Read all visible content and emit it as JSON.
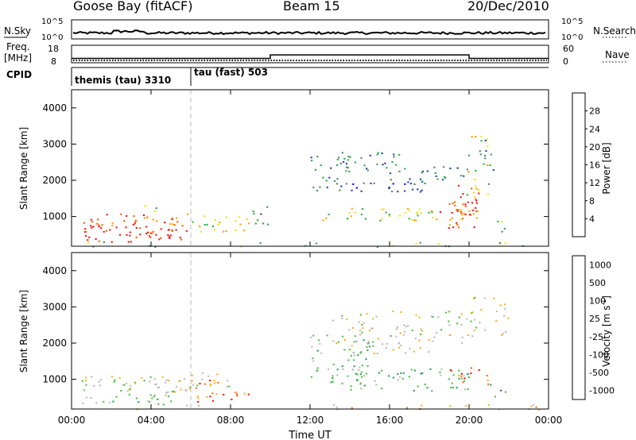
{
  "header": {
    "station": "Goose Bay (fitACF)",
    "beam": "Beam 15",
    "date": "20/Dec/2010"
  },
  "strip_labels": {
    "nsky": "N.Sky",
    "nsky_top": "10^5",
    "nsky_bottom": "10^0",
    "nsearch": "N.Search",
    "nsearch_top": "10^5",
    "nsearch_bottom": "10^0",
    "freq_line1": "Freq.",
    "freq_line2": "[MHz]",
    "freq_top": "18",
    "freq_bottom": "8",
    "nave": "Nave",
    "nave_top": "60",
    "nave_bottom": "0",
    "cpid": "CPID"
  },
  "cpid_segments": [
    {
      "label": "themis (tau) 3310",
      "start_hour": 0,
      "end_hour": 6
    },
    {
      "label": "tau (fast) 503",
      "start_hour": 6,
      "end_hour": 24
    }
  ],
  "colors": {
    "power_scale": [
      "#0000ff",
      "#2040a0",
      "#4a8a60",
      "#20b040",
      "#f0e010",
      "#ffa000",
      "#ff6000",
      "#ff1010"
    ],
    "velocity_scale": [
      "#0030c0",
      "#2858b0",
      "#2f9a5a",
      "#50c040",
      "#bbbbbb",
      "#ffb020",
      "#ff7010",
      "#ff1010"
    ]
  },
  "chart_data": [
    {
      "type": "heatmap",
      "name": "power",
      "xlabel": "Time UT",
      "ylabel": "Slant Range [km]",
      "xlim_hours": [
        0,
        24
      ],
      "ylim": [
        180,
        4500
      ],
      "yticks": [
        "1000",
        "2000",
        "3000",
        "4000"
      ],
      "xticks": [],
      "colorbar_label": "Power [dB]",
      "colorbar_ticks": [
        "4",
        "8",
        "12",
        "16",
        "20",
        "24",
        "28"
      ],
      "colorbar_range": [
        0,
        32
      ]
    },
    {
      "type": "heatmap",
      "name": "velocity",
      "xlabel": "Time UT",
      "ylabel": "Slant Range [km]",
      "xlim_hours": [
        0,
        24
      ],
      "ylim": [
        180,
        4500
      ],
      "yticks": [
        "1000",
        "2000",
        "3000",
        "4000"
      ],
      "xticks": [
        "00:00",
        "04:00",
        "08:00",
        "12:00",
        "16:00",
        "20:00",
        "00:00"
      ],
      "colorbar_label": "Velocity [m s^-1]",
      "colorbar_ticks": [
        "1000",
        "500",
        "100",
        "25",
        "-25",
        "-100",
        "-500",
        "-1000"
      ]
    }
  ],
  "frequency_trace": [
    {
      "start_hour": 0,
      "end_hour": 10,
      "freq_mhz": 10.5
    },
    {
      "start_hour": 10,
      "end_hour": 20,
      "freq_mhz": 12.5
    },
    {
      "start_hour": 20,
      "end_hour": 24,
      "freq_mhz": 10.5
    }
  ],
  "scatter_regions": {
    "power": [
      {
        "t0": 0.5,
        "t1": 6,
        "r0": 300,
        "r1": 750,
        "level": 7,
        "density": 0.95
      },
      {
        "t0": 0.5,
        "t1": 6,
        "r0": 750,
        "r1": 1100,
        "level": 6,
        "density": 0.8
      },
      {
        "t0": 6,
        "t1": 9,
        "r0": 600,
        "r1": 1050,
        "level": 4,
        "density": 0.7
      },
      {
        "t0": 9,
        "t1": 10,
        "r0": 700,
        "r1": 1400,
        "level": 2,
        "density": 0.5
      },
      {
        "t0": 2,
        "t1": 4.5,
        "r0": 1100,
        "r1": 1350,
        "level": 3,
        "density": 0.25
      },
      {
        "t0": 12,
        "t1": 14,
        "r0": 1500,
        "r1": 2700,
        "level": 2,
        "density": 0.5
      },
      {
        "t0": 13.5,
        "t1": 17,
        "r0": 2200,
        "r1": 2800,
        "level": 2,
        "density": 0.6
      },
      {
        "t0": 14,
        "t1": 18,
        "r0": 1700,
        "r1": 2100,
        "level": 1,
        "density": 0.6
      },
      {
        "t0": 17,
        "t1": 20,
        "r0": 1900,
        "r1": 2400,
        "level": 2,
        "density": 0.7
      },
      {
        "t0": 12.5,
        "t1": 20,
        "r0": 900,
        "r1": 1250,
        "level": 4,
        "density": 0.7
      },
      {
        "t0": 18.5,
        "t1": 20.5,
        "r0": 700,
        "r1": 1500,
        "level": 6,
        "density": 0.7
      },
      {
        "t0": 19,
        "t1": 20.5,
        "r0": 1000,
        "r1": 1900,
        "level": 7,
        "density": 0.6
      },
      {
        "t0": 19.8,
        "t1": 21,
        "r0": 1500,
        "r1": 3300,
        "level": 4,
        "density": 0.4
      },
      {
        "t0": 21,
        "t1": 22,
        "r0": 600,
        "r1": 900,
        "level": 3,
        "density": 0.6
      },
      {
        "t0": 20.5,
        "t1": 21.5,
        "r0": 2200,
        "r1": 3200,
        "level": 2,
        "density": 0.45
      },
      {
        "t0": 0,
        "t1": 24,
        "r0": 180,
        "r1": 320,
        "level": 3,
        "density": 0.25
      }
    ],
    "velocity": [
      {
        "t0": 0.5,
        "t1": 6,
        "r0": 650,
        "r1": 1100,
        "level": 4,
        "density": 0.95
      },
      {
        "t0": 2,
        "t1": 5,
        "r0": 300,
        "r1": 650,
        "level": 3,
        "density": 0.75
      },
      {
        "t0": 0.5,
        "t1": 2,
        "r0": 300,
        "r1": 600,
        "level": 4,
        "density": 0.6
      },
      {
        "t0": 6,
        "t1": 9,
        "r0": 400,
        "r1": 1000,
        "level": 6,
        "density": 0.6
      },
      {
        "t0": 6,
        "t1": 8,
        "r0": 800,
        "r1": 1200,
        "level": 4,
        "density": 0.6
      },
      {
        "t0": 12,
        "t1": 15,
        "r0": 900,
        "r1": 2300,
        "level": 3,
        "density": 0.6
      },
      {
        "t0": 13,
        "t1": 20,
        "r0": 2000,
        "r1": 2900,
        "level": 4,
        "density": 0.5
      },
      {
        "t0": 14,
        "t1": 18.5,
        "r0": 1700,
        "r1": 2100,
        "level": 4,
        "density": 0.55
      },
      {
        "t0": 14,
        "t1": 20,
        "r0": 700,
        "r1": 1300,
        "level": 3,
        "density": 0.7
      },
      {
        "t0": 19,
        "t1": 21,
        "r0": 800,
        "r1": 1400,
        "level": 6,
        "density": 0.45
      },
      {
        "t0": 20,
        "t1": 22,
        "r0": 2200,
        "r1": 3300,
        "level": 4,
        "density": 0.5
      },
      {
        "t0": 21,
        "t1": 22,
        "r0": 500,
        "r1": 900,
        "level": 2,
        "density": 0.5
      },
      {
        "t0": 0,
        "t1": 24,
        "r0": 180,
        "r1": 320,
        "level": 5,
        "density": 0.25
      }
    ]
  }
}
